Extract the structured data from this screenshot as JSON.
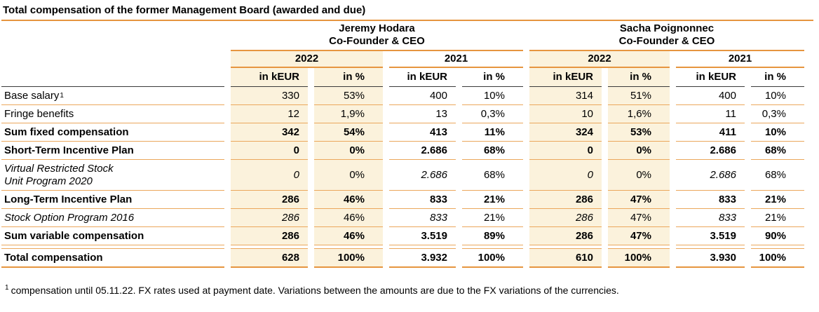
{
  "title": "Total compensation of the former Management Board (awarded and due)",
  "colors": {
    "accent": "#E6953F",
    "accent_light": "#EBA75C",
    "highlight": "#FBF2DC",
    "rule_dark": "#3a3a3a"
  },
  "groups": [
    {
      "name": "Jeremy Hodara",
      "role": "Co-Founder & CEO"
    },
    {
      "name": "Sacha Poignonnec",
      "role": "Co-Founder & CEO"
    }
  ],
  "years": [
    "2022",
    "2021"
  ],
  "units": {
    "keur": "in kEUR",
    "pct": "in %"
  },
  "rows": [
    {
      "label": "Base salary",
      "sup": "1",
      "style": "normal",
      "values": [
        "330",
        "53%",
        "400",
        "10%",
        "314",
        "51%",
        "400",
        "10%"
      ]
    },
    {
      "label": "Fringe benefits",
      "style": "normal",
      "values": [
        "12",
        "1,9%",
        "13",
        "0,3%",
        "10",
        "1,6%",
        "11",
        "0,3%"
      ]
    },
    {
      "label": "Sum fixed compensation",
      "style": "bold",
      "values": [
        "342",
        "54%",
        "413",
        "11%",
        "324",
        "53%",
        "411",
        "10%"
      ]
    },
    {
      "label": "Short-Term Incentive Plan",
      "style": "bold",
      "values": [
        "0",
        "0%",
        "2.686",
        "68%",
        "0",
        "0%",
        "2.686",
        "68%"
      ]
    },
    {
      "label": "Virtual Restricted Stock\nUnit Program 2020",
      "style": "italic",
      "values": [
        "0",
        "0%",
        "2.686",
        "68%",
        "0",
        "0%",
        "2.686",
        "68%"
      ]
    },
    {
      "label": "Long-Term Incentive Plan",
      "style": "bold",
      "values": [
        "286",
        "46%",
        "833",
        "21%",
        "286",
        "47%",
        "833",
        "21%"
      ]
    },
    {
      "label": "Stock Option Program 2016",
      "style": "italic",
      "values": [
        "286",
        "46%",
        "833",
        "21%",
        "286",
        "47%",
        "833",
        "21%"
      ]
    },
    {
      "label": "Sum variable compensation",
      "style": "bold",
      "values": [
        "286",
        "46%",
        "3.519",
        "89%",
        "286",
        "47%",
        "3.519",
        "90%"
      ]
    },
    {
      "label": "Total compensation",
      "style": "bold-total",
      "values": [
        "628",
        "100%",
        "3.932",
        "100%",
        "610",
        "100%",
        "3.930",
        "100%"
      ]
    }
  ],
  "footnote": {
    "sup": "1",
    "text": "compensation until 05.11.22. FX rates used at payment date. Variations between the amounts are due to the FX variations of the currencies."
  }
}
